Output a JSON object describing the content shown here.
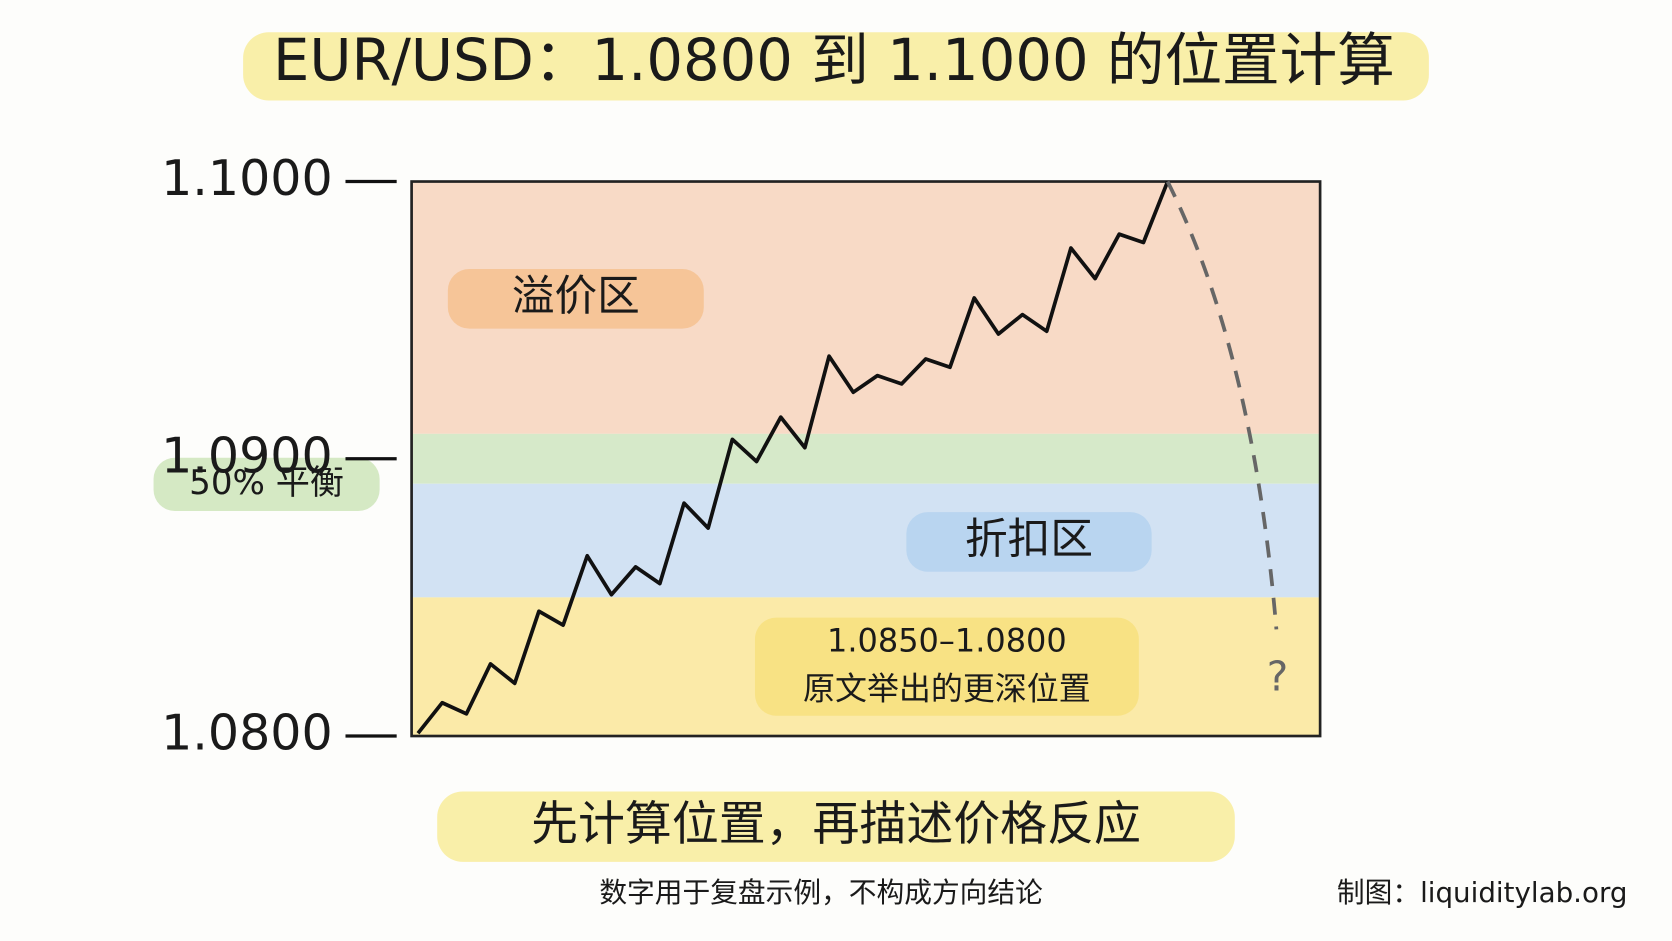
{
  "chart_data": {
    "type": "line",
    "title": "EUR/USD：1.0800 到 1.1000 的位置计算",
    "subtitle": "先计算位置，再描述价格反应",
    "note": "数字用于复盘示例，不构成方向结论",
    "credit": "制图：liquiditylab.org",
    "projection_label": "?",
    "color": "#111111",
    "values": [
      1.0801,
      1.0812,
      1.0808,
      1.0826,
      1.0819,
      1.0845,
      1.084,
      1.0865,
      1.0851,
      1.0861,
      1.0855,
      1.0884,
      1.0875,
      1.0907,
      1.0899,
      1.0915,
      1.0904,
      1.0937,
      1.0924,
      1.093,
      1.0927,
      1.0936,
      1.0933,
      1.0958,
      1.0945,
      1.0952,
      1.0946,
      1.0976,
      1.0965,
      1.0981,
      1.0978,
      1.1
    ],
    "ylim": [
      1.08,
      1.1
    ],
    "yticks": [
      {
        "value": 1.08,
        "label": "1.0800"
      },
      {
        "value": 1.09,
        "label": "1.0900"
      },
      {
        "value": 1.1,
        "label": "1.1000"
      }
    ],
    "zones": [
      {
        "label": [
          "溢价区"
        ],
        "from": 1.0909,
        "to": 1.1,
        "color": "#f8dac6",
        "label_color": "#f5bf8c"
      },
      {
        "label": [
          "50% 平衡"
        ],
        "from": 1.0891,
        "to": 1.0909,
        "color": "#d6e9c9",
        "label_color": "#cbe4b6"
      },
      {
        "label": [
          "折扣区"
        ],
        "from": 1.085,
        "to": 1.0891,
        "color": "#d2e2f3",
        "label_color": "#b3d2ef"
      },
      {
        "label": [
          "1.0850–1.0800",
          "原文举出的更深位置"
        ],
        "from": 1.08,
        "to": 1.085,
        "color": "#fbeaa8",
        "label_color": "#f7e07a"
      }
    ]
  }
}
